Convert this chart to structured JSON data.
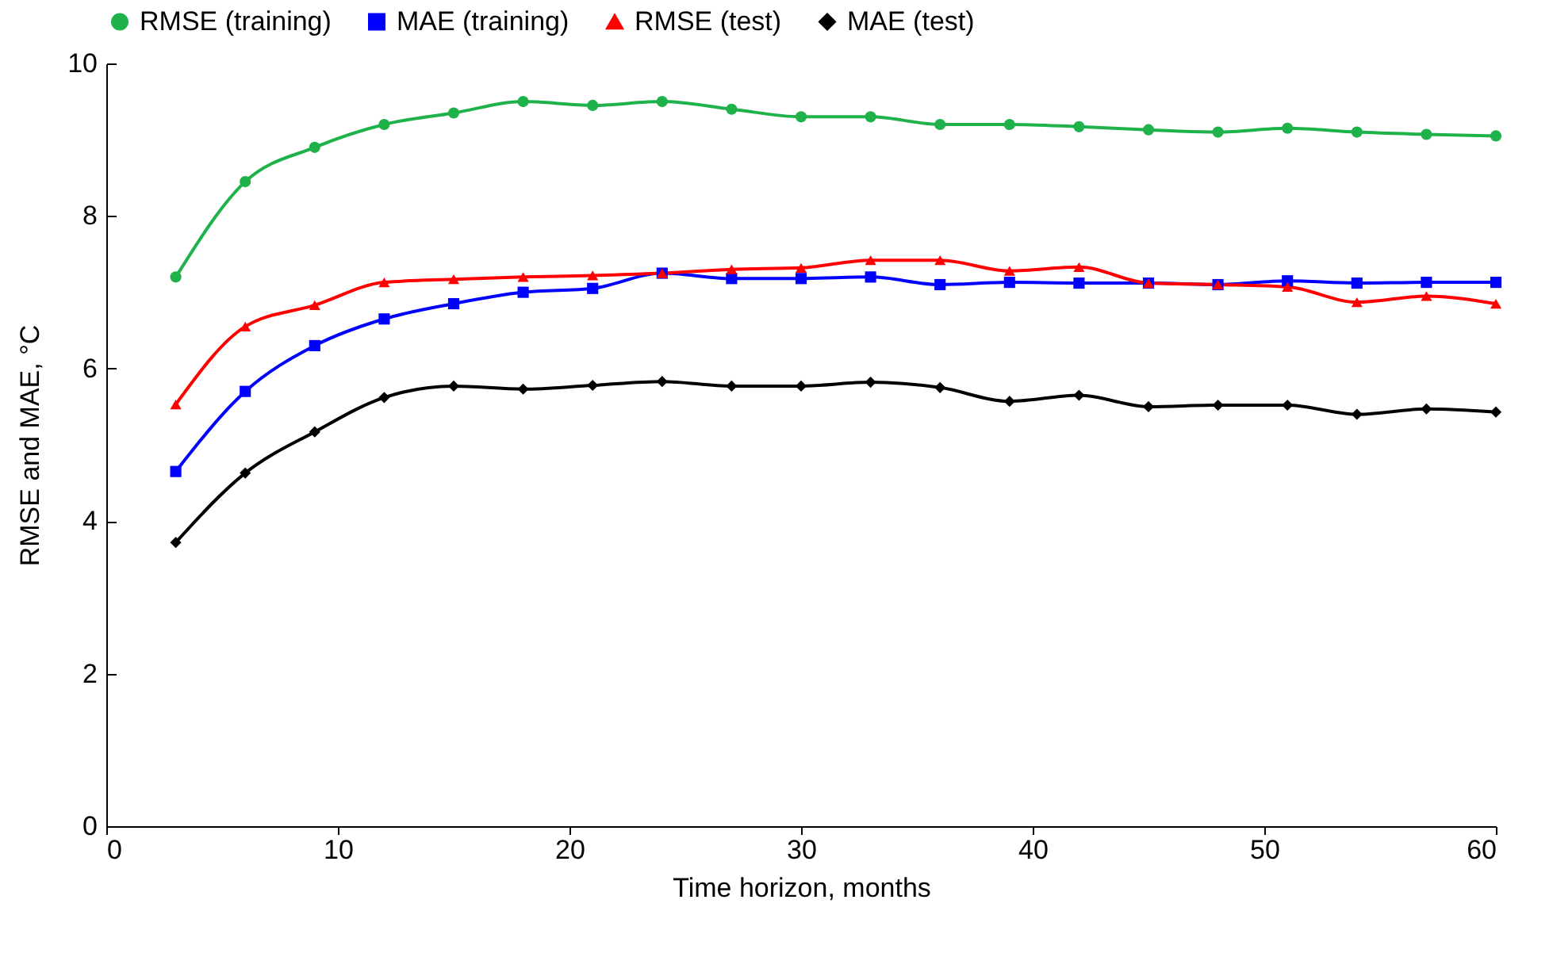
{
  "chart_data": {
    "type": "line",
    "xlabel": "Time horizon, months",
    "ylabel": "RMSE and MAE, °C",
    "x": [
      3,
      6,
      9,
      12,
      15,
      18,
      21,
      24,
      27,
      30,
      33,
      36,
      39,
      42,
      45,
      48,
      51,
      54,
      57,
      60
    ],
    "xlim": [
      0,
      60
    ],
    "xticks": [
      0,
      10,
      20,
      30,
      40,
      50,
      60
    ],
    "ylim": [
      0,
      10
    ],
    "yticks": [
      0,
      2,
      4,
      6,
      8,
      10
    ],
    "legend": "top",
    "grid": false,
    "series": [
      {
        "name": "RMSE (training)",
        "color": "#1fb24a",
        "marker": "circle",
        "values": [
          7.2,
          8.45,
          8.9,
          9.2,
          9.35,
          9.5,
          9.45,
          9.5,
          9.4,
          9.3,
          9.3,
          9.2,
          9.2,
          9.17,
          9.13,
          9.1,
          9.15,
          9.1,
          9.07,
          9.05
        ]
      },
      {
        "name": "MAE (training)",
        "color": "#0000ff",
        "marker": "square",
        "values": [
          4.65,
          5.7,
          6.3,
          6.65,
          6.85,
          7.0,
          7.05,
          7.25,
          7.18,
          7.18,
          7.2,
          7.1,
          7.13,
          7.12,
          7.12,
          7.1,
          7.15,
          7.12,
          7.13,
          7.13
        ]
      },
      {
        "name": "RMSE (test)",
        "color": "#ff0000",
        "marker": "triangle",
        "values": [
          5.53,
          6.55,
          6.83,
          7.13,
          7.17,
          7.2,
          7.22,
          7.25,
          7.3,
          7.32,
          7.42,
          7.42,
          7.28,
          7.33,
          7.12,
          7.1,
          7.07,
          6.87,
          6.95,
          6.85
        ]
      },
      {
        "name": "MAE (test)",
        "color": "#000000",
        "marker": "diamond",
        "values": [
          3.72,
          4.63,
          5.17,
          5.62,
          5.77,
          5.73,
          5.78,
          5.83,
          5.77,
          5.77,
          5.82,
          5.75,
          5.57,
          5.65,
          5.5,
          5.52,
          5.52,
          5.4,
          5.47,
          5.43
        ]
      }
    ]
  }
}
